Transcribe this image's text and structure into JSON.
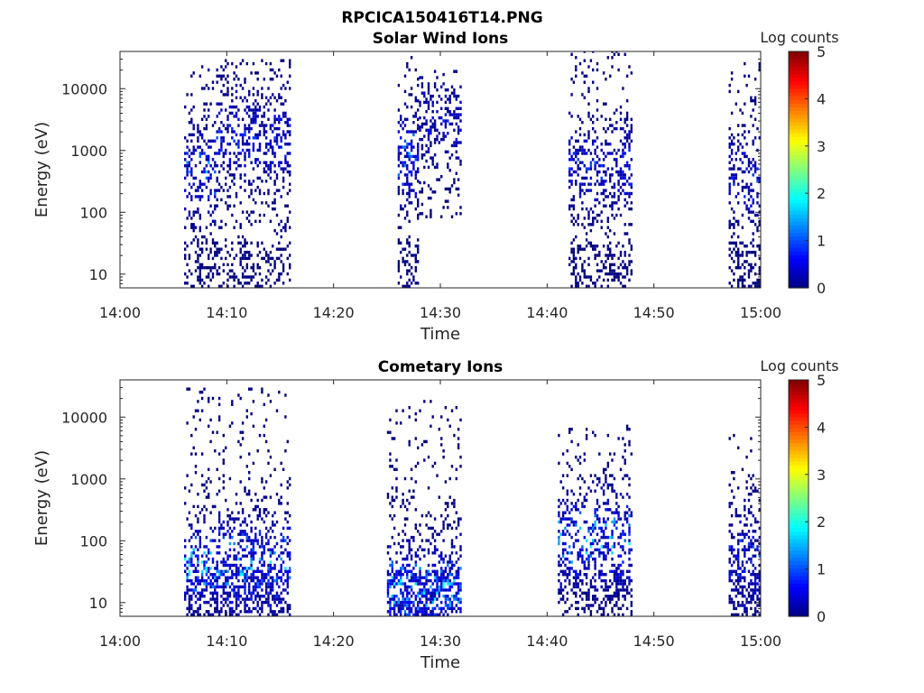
{
  "figure_title": "RPCICA150416T14.PNG",
  "chart_data": [
    {
      "type": "heatmap",
      "title": "Solar Wind Ions",
      "xlabel": "Time",
      "ylabel": "Energy (eV)",
      "y_scale": "log",
      "xlim": [
        "14:00",
        "15:00"
      ],
      "ylim": [
        6,
        40000
      ],
      "x_ticks": [
        "14:00",
        "14:10",
        "14:20",
        "14:30",
        "14:40",
        "14:50",
        "15:00"
      ],
      "y_ticks": [
        "10",
        "100",
        "1000",
        "10000"
      ],
      "colorbar": {
        "label": "Log counts",
        "range": [
          0,
          5
        ],
        "ticks": [
          "0",
          "1",
          "2",
          "3",
          "4",
          "5"
        ],
        "colormap": "jet"
      },
      "bursts": [
        {
          "start": "14:06",
          "end": "14:09",
          "e_min": 6,
          "e_max": 25000,
          "peak_energy": 400,
          "peak_log": 1.7
        },
        {
          "start": "14:09",
          "end": "14:16",
          "e_min": 6,
          "e_max": 30000,
          "peak_energy": 1500,
          "peak_log": 1.0
        },
        {
          "start": "14:26",
          "end": "14:28",
          "e_min": 6,
          "e_max": 35000,
          "peak_energy": 800,
          "peak_log": 1.6
        },
        {
          "start": "14:28",
          "end": "14:32",
          "e_min": 80,
          "e_max": 20000,
          "peak_energy": 3000,
          "peak_log": 0.8
        },
        {
          "start": "14:42",
          "end": "14:48",
          "e_min": 6,
          "e_max": 40000,
          "peak_energy": 500,
          "peak_log": 1.0
        },
        {
          "start": "14:57",
          "end": "15:00",
          "e_min": 6,
          "e_max": 25000,
          "peak_energy": 300,
          "peak_log": 1.0
        }
      ]
    },
    {
      "type": "heatmap",
      "title": "Cometary Ions",
      "xlabel": "Time",
      "ylabel": "Energy (eV)",
      "y_scale": "log",
      "xlim": [
        "14:00",
        "15:00"
      ],
      "ylim": [
        6,
        40000
      ],
      "x_ticks": [
        "14:00",
        "14:10",
        "14:20",
        "14:30",
        "14:40",
        "14:50",
        "15:00"
      ],
      "y_ticks": [
        "10",
        "100",
        "1000",
        "10000"
      ],
      "colorbar": {
        "label": "Log counts",
        "range": [
          0,
          5
        ],
        "ticks": [
          "0",
          "1",
          "2",
          "3",
          "4",
          "5"
        ],
        "colormap": "jet"
      },
      "bursts": [
        {
          "start": "14:06",
          "end": "14:16",
          "e_min": 6,
          "e_max": 27000,
          "peak_energy": 40,
          "peak_log": 2.0
        },
        {
          "start": "14:25",
          "end": "14:32",
          "e_min": 6,
          "e_max": 18000,
          "peak_energy": 15,
          "peak_log": 2.0
        },
        {
          "start": "14:41",
          "end": "14:48",
          "e_min": 6,
          "e_max": 7000,
          "peak_energy": 100,
          "peak_log": 2.0
        },
        {
          "start": "14:57",
          "end": "15:00",
          "e_min": 6,
          "e_max": 5000,
          "peak_energy": 50,
          "peak_log": 1.2
        }
      ]
    }
  ]
}
